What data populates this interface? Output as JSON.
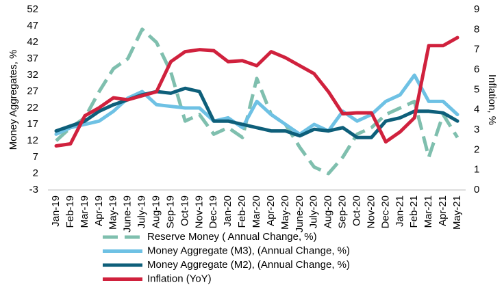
{
  "chart_data": {
    "type": "line",
    "y_label": "Money Aggregates, %",
    "y2_label": "Inflation, %",
    "categories": [
      "Jan-19",
      "Feb-19",
      "Mar-19",
      "Apr-19",
      "May-19",
      "June-19",
      "July-19",
      "Aug-19",
      "Sep-19",
      "Oct-19",
      "Nov-19",
      "Dec-19",
      "Jan-20",
      "Feb-20",
      "Mar-20",
      "Apr-20",
      "May-20",
      "June-20",
      "July-20",
      "Aug-20",
      "Sep-20",
      "Oct-20",
      "Nov-20",
      "Dec-20",
      "Jan-21",
      "Feb-21",
      "Mar-21",
      "Apr-21",
      "May-21"
    ],
    "ylim": [
      -3,
      52
    ],
    "yticks": [
      -3,
      2,
      7,
      12,
      17,
      22,
      27,
      32,
      37,
      42,
      47,
      52
    ],
    "y2lim": [
      0,
      9
    ],
    "y2ticks": [
      0,
      1,
      2,
      3,
      4,
      5,
      6,
      7,
      8,
      9
    ],
    "series": [
      {
        "name": "Reserve Money ( Annual Change, %)",
        "color": "#7fbfae",
        "dashed": true,
        "values": [
          12,
          16,
          19,
          27,
          34,
          37,
          46,
          42,
          33,
          18,
          20,
          14,
          16,
          13,
          31,
          20,
          17,
          10,
          4,
          2,
          7,
          14,
          16,
          20,
          22,
          24,
          7,
          20,
          13
        ]
      },
      {
        "name": "Money Aggregate (M3), (Annual Change, %)",
        "color": "#6ec1e4",
        "values": [
          14,
          16,
          17,
          18,
          21,
          25,
          27,
          23,
          22.5,
          22,
          22,
          18,
          19,
          16,
          24,
          20,
          17,
          14,
          17,
          15,
          21,
          18,
          20,
          24,
          26,
          32,
          24,
          24,
          20
        ]
      },
      {
        "name": "Money Aggregate (M2), (Annual Change, %)",
        "color": "#0e5f7a",
        "values": [
          15,
          16.5,
          18,
          21,
          23,
          24.5,
          26,
          27,
          26.5,
          28,
          27,
          18,
          18,
          17,
          16,
          15,
          15,
          13.5,
          15.5,
          15,
          16,
          13,
          13,
          18,
          19,
          21,
          21,
          20.5,
          18
        ]
      },
      {
        "name": "Inflation (YoY)",
        "color": "#d0213d",
        "axis": "y2",
        "values": [
          2.2,
          2.3,
          3.7,
          4.1,
          4.6,
          4.5,
          4.7,
          4.9,
          6.4,
          6.9,
          7.0,
          6.95,
          6.4,
          6.45,
          6.2,
          6.9,
          6.6,
          6.2,
          5.8,
          4.9,
          3.8,
          3.85,
          3.85,
          2.4,
          2.9,
          3.6,
          7.2,
          7.2,
          7.6
        ]
      }
    ]
  }
}
